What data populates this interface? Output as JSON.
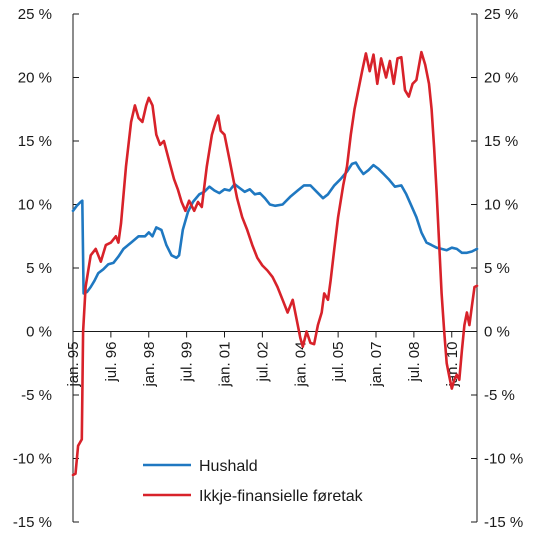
{
  "chart_data": {
    "type": "line",
    "title": "",
    "xlabel": "",
    "ylabel": "",
    "ylim": [
      -15,
      25
    ],
    "xlim": [
      1995.0,
      2011.0
    ],
    "yticks": [
      -15,
      -10,
      -5,
      0,
      5,
      10,
      15,
      20,
      25
    ],
    "ytick_labels": [
      "-15 %",
      "-10 %",
      "-5 %",
      "0 %",
      "5 %",
      "10 %",
      "15 %",
      "20 %",
      "25 %"
    ],
    "right_axis_mirrors_left": true,
    "xticks": [
      {
        "label": "jan. 95",
        "x": 1995.0
      },
      {
        "label": "jul. 96",
        "x": 1996.5
      },
      {
        "label": "jan. 98",
        "x": 1998.0
      },
      {
        "label": "jul. 99",
        "x": 1999.5
      },
      {
        "label": "jan. 01",
        "x": 2001.0
      },
      {
        "label": "jul. 02",
        "x": 2002.5
      },
      {
        "label": "jan. 04",
        "x": 2004.0
      },
      {
        "label": "jul. 05",
        "x": 2005.5
      },
      {
        "label": "jan. 07",
        "x": 2007.0
      },
      {
        "label": "jul. 08",
        "x": 2008.5
      },
      {
        "label": "jan. 10",
        "x": 2010.0
      }
    ],
    "legend_position": "bottom-center",
    "grid": false,
    "series": [
      {
        "name": "Hushald",
        "color": "#1f78c1",
        "points": [
          [
            1995.0,
            9.5
          ],
          [
            1995.15,
            9.9
          ],
          [
            1995.3,
            10.2
          ],
          [
            1995.37,
            10.3
          ],
          [
            1995.42,
            3.0
          ],
          [
            1995.55,
            3.1
          ],
          [
            1995.7,
            3.5
          ],
          [
            1995.85,
            4.0
          ],
          [
            1996.0,
            4.6
          ],
          [
            1996.2,
            4.9
          ],
          [
            1996.4,
            5.3
          ],
          [
            1996.6,
            5.4
          ],
          [
            1996.8,
            5.9
          ],
          [
            1997.0,
            6.5
          ],
          [
            1997.3,
            7.0
          ],
          [
            1997.6,
            7.5
          ],
          [
            1997.85,
            7.5
          ],
          [
            1998.0,
            7.8
          ],
          [
            1998.15,
            7.5
          ],
          [
            1998.3,
            8.2
          ],
          [
            1998.5,
            8.0
          ],
          [
            1998.7,
            6.8
          ],
          [
            1998.9,
            6.0
          ],
          [
            1999.1,
            5.8
          ],
          [
            1999.2,
            6.0
          ],
          [
            1999.35,
            8.0
          ],
          [
            1999.55,
            9.4
          ],
          [
            1999.75,
            10.2
          ],
          [
            2000.0,
            10.8
          ],
          [
            2000.2,
            11.0
          ],
          [
            2000.4,
            11.4
          ],
          [
            2000.6,
            11.1
          ],
          [
            2000.8,
            10.9
          ],
          [
            2001.0,
            11.2
          ],
          [
            2001.2,
            11.1
          ],
          [
            2001.4,
            11.6
          ],
          [
            2001.6,
            11.3
          ],
          [
            2001.8,
            11.0
          ],
          [
            2002.0,
            11.2
          ],
          [
            2002.2,
            10.8
          ],
          [
            2002.4,
            10.9
          ],
          [
            2002.6,
            10.5
          ],
          [
            2002.8,
            10.0
          ],
          [
            2003.0,
            9.9
          ],
          [
            2003.3,
            10.0
          ],
          [
            2003.6,
            10.6
          ],
          [
            2003.9,
            11.1
          ],
          [
            2004.15,
            11.5
          ],
          [
            2004.4,
            11.5
          ],
          [
            2004.65,
            11.0
          ],
          [
            2004.9,
            10.5
          ],
          [
            2005.1,
            10.8
          ],
          [
            2005.35,
            11.5
          ],
          [
            2005.6,
            12.0
          ],
          [
            2005.85,
            12.6
          ],
          [
            2006.05,
            13.2
          ],
          [
            2006.2,
            13.3
          ],
          [
            2006.35,
            12.8
          ],
          [
            2006.5,
            12.4
          ],
          [
            2006.7,
            12.7
          ],
          [
            2006.9,
            13.1
          ],
          [
            2007.1,
            12.8
          ],
          [
            2007.3,
            12.4
          ],
          [
            2007.5,
            12.0
          ],
          [
            2007.75,
            11.4
          ],
          [
            2008.0,
            11.5
          ],
          [
            2008.2,
            10.8
          ],
          [
            2008.4,
            9.9
          ],
          [
            2008.6,
            9.0
          ],
          [
            2008.8,
            7.8
          ],
          [
            2009.0,
            7.0
          ],
          [
            2009.2,
            6.8
          ],
          [
            2009.4,
            6.6
          ],
          [
            2009.6,
            6.5
          ],
          [
            2009.8,
            6.4
          ],
          [
            2010.0,
            6.6
          ],
          [
            2010.2,
            6.5
          ],
          [
            2010.4,
            6.2
          ],
          [
            2010.6,
            6.2
          ],
          [
            2010.8,
            6.3
          ],
          [
            2011.0,
            6.5
          ]
        ]
      },
      {
        "name": "Ikkje-finansielle føretak",
        "color": "#d8222a",
        "points": [
          [
            1995.0,
            -11.3
          ],
          [
            1995.1,
            -11.2
          ],
          [
            1995.2,
            -9.0
          ],
          [
            1995.35,
            -8.5
          ],
          [
            1995.4,
            0.0
          ],
          [
            1995.5,
            3.5
          ],
          [
            1995.7,
            6.0
          ],
          [
            1995.9,
            6.5
          ],
          [
            1996.1,
            5.5
          ],
          [
            1996.3,
            6.8
          ],
          [
            1996.5,
            7.0
          ],
          [
            1996.7,
            7.5
          ],
          [
            1996.8,
            7.0
          ],
          [
            1996.9,
            8.5
          ],
          [
            1997.1,
            13.0
          ],
          [
            1997.3,
            16.5
          ],
          [
            1997.45,
            17.8
          ],
          [
            1997.6,
            16.8
          ],
          [
            1997.75,
            16.5
          ],
          [
            1997.9,
            17.8
          ],
          [
            1998.0,
            18.4
          ],
          [
            1998.15,
            17.8
          ],
          [
            1998.3,
            15.5
          ],
          [
            1998.45,
            14.7
          ],
          [
            1998.6,
            15.0
          ],
          [
            1998.8,
            13.5
          ],
          [
            1999.0,
            12.0
          ],
          [
            1999.15,
            11.2
          ],
          [
            1999.3,
            10.2
          ],
          [
            1999.45,
            9.5
          ],
          [
            1999.6,
            10.3
          ],
          [
            1999.8,
            9.5
          ],
          [
            1999.95,
            10.2
          ],
          [
            2000.1,
            9.8
          ],
          [
            2000.3,
            13.0
          ],
          [
            2000.5,
            15.5
          ],
          [
            2000.65,
            16.5
          ],
          [
            2000.75,
            17.0
          ],
          [
            2000.85,
            15.8
          ],
          [
            2001.0,
            15.5
          ],
          [
            2001.2,
            13.5
          ],
          [
            2001.35,
            12.0
          ],
          [
            2001.5,
            10.5
          ],
          [
            2001.7,
            9.0
          ],
          [
            2001.9,
            8.0
          ],
          [
            2002.1,
            6.8
          ],
          [
            2002.3,
            5.8
          ],
          [
            2002.5,
            5.2
          ],
          [
            2002.7,
            4.8
          ],
          [
            2002.9,
            4.3
          ],
          [
            2003.1,
            3.5
          ],
          [
            2003.3,
            2.5
          ],
          [
            2003.5,
            1.5
          ],
          [
            2003.7,
            2.5
          ],
          [
            2003.85,
            1.0
          ],
          [
            2004.0,
            -0.5
          ],
          [
            2004.1,
            -1.2
          ],
          [
            2004.25,
            0.0
          ],
          [
            2004.4,
            -0.9
          ],
          [
            2004.55,
            -1.0
          ],
          [
            2004.7,
            0.5
          ],
          [
            2004.85,
            1.5
          ],
          [
            2004.95,
            3.0
          ],
          [
            2005.1,
            2.5
          ],
          [
            2005.2,
            4.0
          ],
          [
            2005.35,
            6.5
          ],
          [
            2005.5,
            9.0
          ],
          [
            2005.7,
            11.5
          ],
          [
            2005.85,
            13.0
          ],
          [
            2006.0,
            15.5
          ],
          [
            2006.15,
            17.5
          ],
          [
            2006.3,
            19.0
          ],
          [
            2006.45,
            20.5
          ],
          [
            2006.6,
            21.9
          ],
          [
            2006.75,
            20.5
          ],
          [
            2006.9,
            21.8
          ],
          [
            2007.05,
            19.5
          ],
          [
            2007.2,
            21.5
          ],
          [
            2007.4,
            20.0
          ],
          [
            2007.55,
            21.3
          ],
          [
            2007.7,
            19.5
          ],
          [
            2007.85,
            21.5
          ],
          [
            2008.0,
            21.6
          ],
          [
            2008.15,
            19.0
          ],
          [
            2008.3,
            18.5
          ],
          [
            2008.45,
            19.5
          ],
          [
            2008.6,
            19.8
          ],
          [
            2008.8,
            22.0
          ],
          [
            2008.95,
            21.0
          ],
          [
            2009.1,
            19.5
          ],
          [
            2009.2,
            17.5
          ],
          [
            2009.3,
            14.5
          ],
          [
            2009.4,
            11.0
          ],
          [
            2009.5,
            7.0
          ],
          [
            2009.6,
            3.0
          ],
          [
            2009.7,
            0.0
          ],
          [
            2009.8,
            -2.5
          ],
          [
            2009.9,
            -3.5
          ],
          [
            2010.0,
            -4.5
          ],
          [
            2010.1,
            -3.8
          ],
          [
            2010.2,
            -3.4
          ],
          [
            2010.3,
            -3.8
          ],
          [
            2010.4,
            -1.5
          ],
          [
            2010.5,
            0.5
          ],
          [
            2010.6,
            1.5
          ],
          [
            2010.7,
            0.5
          ],
          [
            2010.8,
            2.0
          ],
          [
            2010.9,
            3.5
          ],
          [
            2011.0,
            3.6
          ]
        ]
      }
    ]
  }
}
